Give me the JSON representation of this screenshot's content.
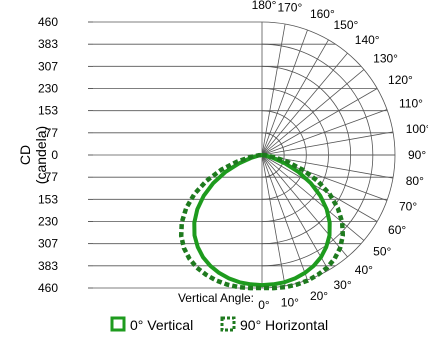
{
  "chart_data": {
    "type": "polar",
    "title": "",
    "ylabel_line1": "CD",
    "ylabel_line2": "(candela)",
    "angle_axis_label": "Vertical Angle:",
    "y_ticks": [
      "460",
      "383",
      "307",
      "230",
      "153",
      "77",
      "0",
      "77",
      "153",
      "230",
      "307",
      "383",
      "460"
    ],
    "rmax": 460,
    "angle_ticks": [
      0,
      10,
      20,
      30,
      40,
      50,
      60,
      70,
      80,
      90,
      100,
      110,
      120,
      130,
      140,
      150,
      160,
      170,
      180
    ],
    "angle_tick_labels": [
      "0°",
      "10°",
      "20°",
      "30°",
      "40°",
      "50°",
      "60°",
      "70°",
      "80°",
      "90°",
      "100°",
      "110°",
      "120°",
      "130°",
      "140°",
      "150°",
      "160°",
      "170°",
      "180°"
    ],
    "grid": true,
    "legend_position": "bottom",
    "series": [
      {
        "name": "0° Vertical",
        "color": "#1e9b1e",
        "style": "solid",
        "angles": [
          0,
          5,
          10,
          15,
          20,
          25,
          30,
          35,
          40,
          45,
          50,
          55,
          60,
          65,
          70,
          75,
          80,
          85,
          90
        ],
        "values": [
          450,
          449,
          447,
          442,
          434,
          423,
          408,
          388,
          363,
          331,
          292,
          246,
          195,
          140,
          85,
          40,
          14,
          4,
          0
        ]
      },
      {
        "name": "90° Horizontal",
        "color": "#1e7a1e",
        "style": "dashed",
        "angles": [
          0,
          5,
          10,
          15,
          20,
          25,
          30,
          35,
          40,
          45,
          50,
          55,
          60,
          65,
          70,
          75,
          80,
          85,
          90
        ],
        "values": [
          460,
          462,
          464,
          464,
          462,
          457,
          450,
          438,
          420,
          395,
          362,
          320,
          270,
          212,
          150,
          90,
          42,
          12,
          0
        ]
      }
    ]
  }
}
